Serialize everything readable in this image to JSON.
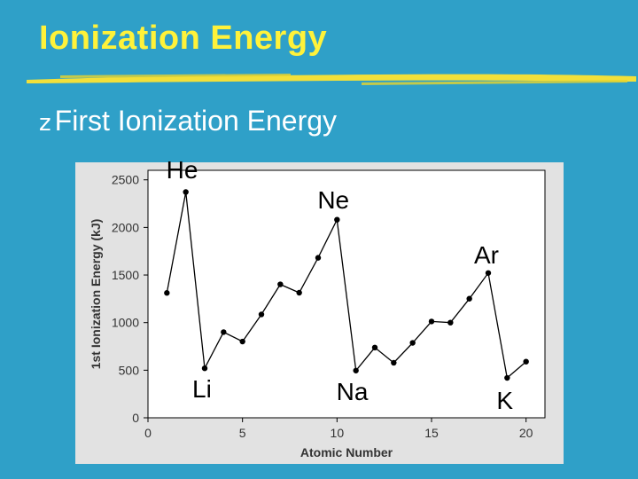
{
  "slide": {
    "title": "Ionization Energy",
    "bullet": "First Ionization Energy",
    "bullet_icon": "z-bullet-icon"
  },
  "colors": {
    "background": "#2fa0c8",
    "title": "#fff23a",
    "underline": "#f2e03a",
    "chart_panel": "#e2e2e2",
    "plot_area": "#ffffff",
    "series": "#000000"
  },
  "chart_data": {
    "type": "line",
    "title": "",
    "xlabel": "Atomic Number",
    "ylabel": "1st Ionization Energy (kJ)",
    "xlim": [
      0,
      21
    ],
    "ylim": [
      0,
      2600
    ],
    "xticks": [
      0,
      5,
      10,
      15,
      20
    ],
    "yticks": [
      0,
      500,
      1000,
      1500,
      2000,
      2500
    ],
    "grid": false,
    "x": [
      1,
      2,
      3,
      4,
      5,
      6,
      7,
      8,
      9,
      10,
      11,
      12,
      13,
      14,
      15,
      16,
      17,
      18,
      19,
      20
    ],
    "y": [
      1312,
      2372,
      520,
      900,
      801,
      1086,
      1402,
      1314,
      1681,
      2081,
      496,
      738,
      578,
      787,
      1012,
      1000,
      1251,
      1521,
      419,
      590
    ],
    "annotations": [
      {
        "text": "He",
        "x": 2
      },
      {
        "text": "Li",
        "x": 3
      },
      {
        "text": "Ne",
        "x": 10
      },
      {
        "text": "Na",
        "x": 11
      },
      {
        "text": "Ar",
        "x": 18
      },
      {
        "text": "K",
        "x": 19
      }
    ]
  }
}
